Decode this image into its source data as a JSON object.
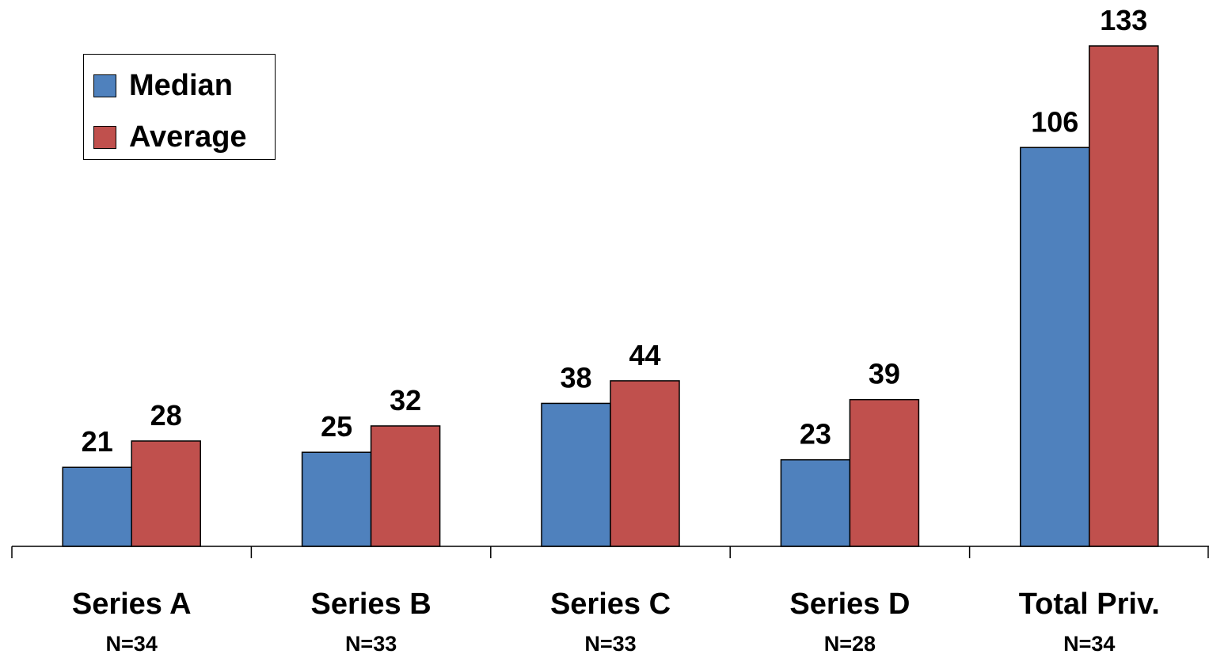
{
  "chart_data": {
    "type": "bar",
    "categories": [
      "Series A",
      "Series B",
      "Series C",
      "Series D",
      "Total Priv."
    ],
    "category_notes": [
      "N=34",
      "N=33",
      "N=33",
      "N=28",
      "N=34"
    ],
    "series": [
      {
        "name": "Median",
        "values": [
          21,
          25,
          38,
          23,
          106
        ],
        "color": "#4F81BD"
      },
      {
        "name": "Average",
        "values": [
          28,
          32,
          44,
          39,
          133
        ],
        "color": "#C0504D"
      }
    ],
    "data_labels": true,
    "legend_position": "top-left",
    "grid": false,
    "ylim": [
      0,
      133
    ]
  }
}
